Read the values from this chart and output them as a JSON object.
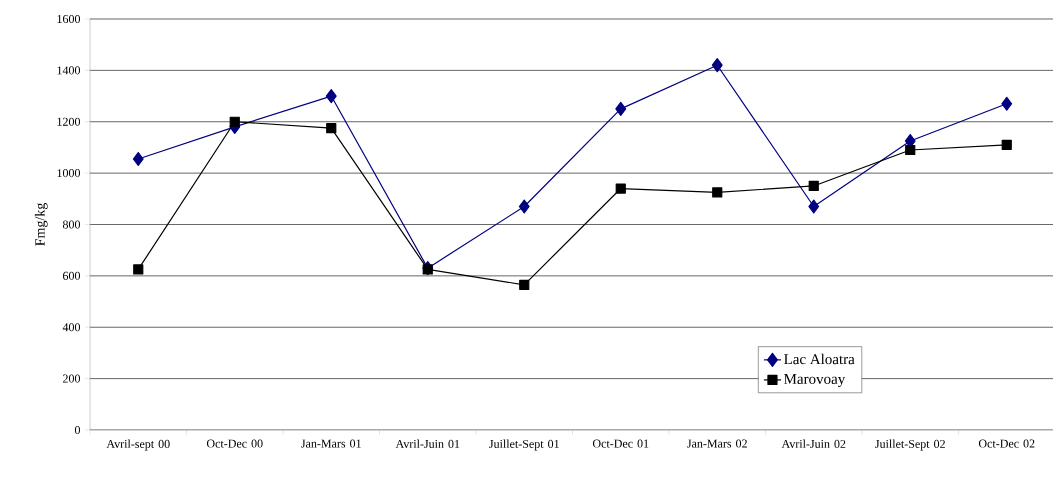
{
  "chart_data": {
    "type": "line",
    "ylabel": "Fmg/kg",
    "categories": [
      "Avril-sept 00",
      "Oct-Dec 00",
      "Jan-Mars 01",
      "Avril-Juin 01",
      "Juillet-Sept 01",
      "Oct-Dec 01",
      "Jan-Mars 02",
      "Avril-Juin 02",
      "Juillet-Sept 02",
      "Oct-Dec 02"
    ],
    "series": [
      {
        "name": "Lac Aloatra",
        "color": "#000080",
        "marker": "diamond",
        "values": [
          1055,
          1180,
          1300,
          630,
          870,
          1250,
          1420,
          870,
          1125,
          1270
        ]
      },
      {
        "name": "Marovoay",
        "color": "#000000",
        "marker": "square",
        "values": [
          625,
          1200,
          1175,
          625,
          565,
          940,
          925,
          950,
          1090,
          1110
        ]
      }
    ],
    "ylim": [
      0,
      1600
    ],
    "yticks": [
      0,
      200,
      400,
      600,
      800,
      1000,
      1200,
      1400,
      1600
    ],
    "grid": "y",
    "legend": "bottom right",
    "line_style": "solid"
  }
}
